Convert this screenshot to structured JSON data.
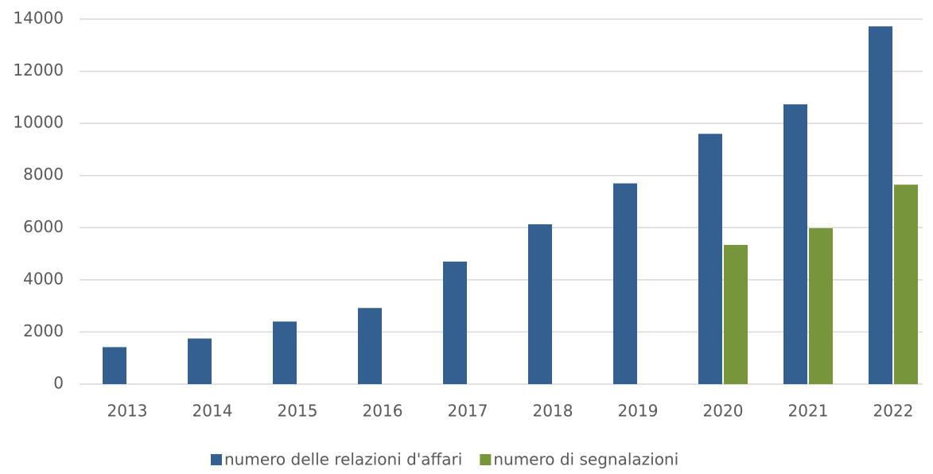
{
  "chart_data": {
    "type": "bar",
    "categories": [
      "2013",
      "2014",
      "2015",
      "2016",
      "2017",
      "2018",
      "2019",
      "2020",
      "2021",
      "2022"
    ],
    "series": [
      {
        "name": "numero delle relazioni d'affari",
        "color": "#335f91",
        "values": [
          1420,
          1750,
          2400,
          2920,
          4700,
          6130,
          7700,
          9600,
          10730,
          13720
        ]
      },
      {
        "name": "numero di segnalazioni",
        "color": "#77963b",
        "values": [
          null,
          null,
          null,
          null,
          null,
          null,
          null,
          5340,
          5980,
          7650
        ]
      }
    ],
    "ylim": [
      0,
      14000
    ],
    "yticks": [
      0,
      2000,
      4000,
      6000,
      8000,
      10000,
      12000,
      14000
    ],
    "grid": true,
    "legend": "bottom"
  }
}
